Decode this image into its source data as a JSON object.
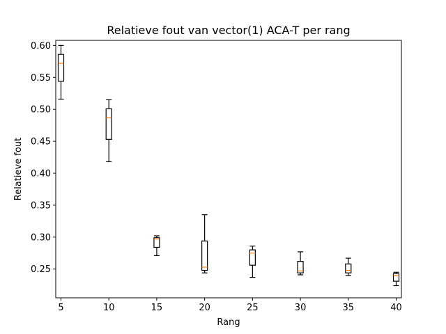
{
  "chart_data": {
    "type": "boxplot",
    "title": "Relatieve fout van vector(1) ACA-T per rang",
    "xlabel": "Rang",
    "ylabel": "Relatieve fout",
    "x_ticks": [
      "5",
      "10",
      "15",
      "20",
      "25",
      "30",
      "35",
      "40"
    ],
    "y_ticks": [
      "0.25",
      "0.30",
      "0.35",
      "0.40",
      "0.45",
      "0.50",
      "0.55",
      "0.60"
    ],
    "ylim": [
      0.205,
      0.608
    ],
    "grid": false,
    "median_color": "#ff7f0e",
    "box_color": "#000000",
    "boxes": [
      {
        "x": 5,
        "whisker_low": 0.516,
        "q1": 0.544,
        "median": 0.572,
        "q3": 0.586,
        "whisker_high": 0.6
      },
      {
        "x": 10,
        "whisker_low": 0.418,
        "q1": 0.453,
        "median": 0.487,
        "q3": 0.501,
        "whisker_high": 0.515
      },
      {
        "x": 15,
        "whisker_low": 0.271,
        "q1": 0.284,
        "median": 0.297,
        "q3": 0.299,
        "whisker_high": 0.302
      },
      {
        "x": 20,
        "whisker_low": 0.244,
        "q1": 0.248,
        "median": 0.253,
        "q3": 0.294,
        "whisker_high": 0.335
      },
      {
        "x": 25,
        "whisker_low": 0.237,
        "q1": 0.256,
        "median": 0.275,
        "q3": 0.28,
        "whisker_high": 0.286
      },
      {
        "x": 30,
        "whisker_low": 0.241,
        "q1": 0.244,
        "median": 0.247,
        "q3": 0.262,
        "whisker_high": 0.277
      },
      {
        "x": 35,
        "whisker_low": 0.24,
        "q1": 0.244,
        "median": 0.248,
        "q3": 0.258,
        "whisker_high": 0.267
      },
      {
        "x": 40,
        "whisker_low": 0.224,
        "q1": 0.231,
        "median": 0.24,
        "q3": 0.243,
        "whisker_high": 0.245
      }
    ]
  }
}
